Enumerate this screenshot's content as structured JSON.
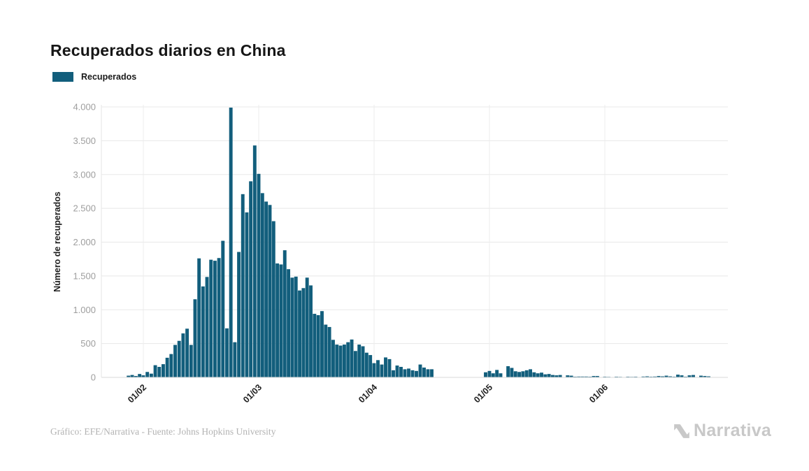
{
  "header": {
    "title": "Recuperados diarios en China"
  },
  "legend": {
    "label": "Recuperados",
    "color": "#125e7c"
  },
  "y_axis": {
    "label": "Número de recuperados",
    "ticks": [
      {
        "label": "4.000",
        "value": 4000
      },
      {
        "label": "3.500",
        "value": 3500
      },
      {
        "label": "3.000",
        "value": 3000
      },
      {
        "label": "2.500",
        "value": 2500
      },
      {
        "label": "2.000",
        "value": 2000
      },
      {
        "label": "1.500",
        "value": 1500
      },
      {
        "label": "1.000",
        "value": 1000
      },
      {
        "label": "500",
        "value": 500
      },
      {
        "label": "0",
        "value": 0
      }
    ]
  },
  "x_axis": {
    "ticks": [
      {
        "label": "01/02",
        "month": 2
      },
      {
        "label": "01/03",
        "month": 3
      },
      {
        "label": "01/04",
        "month": 4
      },
      {
        "label": "01/05",
        "month": 5
      },
      {
        "label": "01/06",
        "month": 6
      }
    ]
  },
  "footer": {
    "credit": "Gráfico: EFE/Narrativa - Fuente: Johns Hopkins University"
  },
  "branding": {
    "logo_text": "Narrativa"
  },
  "chart_data": {
    "type": "bar",
    "title": "Recuperados diarios en China",
    "series_name": "Recuperados",
    "xlabel": "",
    "ylabel": "Número de recuperados",
    "ylim": [
      0,
      4000
    ],
    "grid": true,
    "legend_position": "top-left",
    "bar_color": "#125e7c",
    "x": [
      "28/01",
      "29/01",
      "30/01",
      "31/01",
      "01/02",
      "02/02",
      "03/02",
      "04/02",
      "05/02",
      "06/02",
      "07/02",
      "08/02",
      "09/02",
      "10/02",
      "11/02",
      "12/02",
      "13/02",
      "14/02",
      "15/02",
      "16/02",
      "17/02",
      "18/02",
      "19/02",
      "20/02",
      "21/02",
      "22/02",
      "23/02",
      "24/02",
      "25/02",
      "26/02",
      "27/02",
      "28/02",
      "29/02",
      "01/03",
      "02/03",
      "03/03",
      "04/03",
      "05/03",
      "06/03",
      "07/03",
      "08/03",
      "09/03",
      "10/03",
      "11/03",
      "12/03",
      "13/03",
      "14/03",
      "15/03",
      "16/03",
      "17/03",
      "18/03",
      "19/03",
      "20/03",
      "21/03",
      "22/03",
      "23/03",
      "24/03",
      "25/03",
      "26/03",
      "27/03",
      "28/03",
      "29/03",
      "30/03",
      "31/03",
      "01/04",
      "02/04",
      "03/04",
      "04/04",
      "05/04",
      "06/04",
      "07/04",
      "08/04",
      "09/04",
      "10/04",
      "11/04",
      "12/04",
      "13/04",
      "14/04",
      "15/04",
      "16/04",
      "17/04",
      "18/04",
      "19/04",
      "20/04",
      "21/04",
      "22/04",
      "23/04",
      "24/04",
      "25/04",
      "26/04",
      "27/04",
      "28/04",
      "29/04",
      "30/04",
      "01/05",
      "02/05",
      "03/05",
      "04/05",
      "05/05",
      "06/05",
      "07/05",
      "08/05",
      "09/05",
      "10/05",
      "11/05",
      "12/05",
      "13/05",
      "14/05",
      "15/05",
      "16/05",
      "17/05",
      "18/05",
      "19/05",
      "20/05",
      "21/05",
      "22/05",
      "23/05",
      "24/05",
      "25/05",
      "26/05",
      "27/05",
      "28/05",
      "29/05",
      "30/05",
      "31/05",
      "01/06",
      "02/06",
      "03/06",
      "04/06",
      "05/06",
      "06/06",
      "07/06",
      "08/06",
      "09/06",
      "10/06",
      "11/06",
      "12/06",
      "13/06",
      "14/06",
      "15/06",
      "16/06",
      "17/06",
      "18/06",
      "19/06",
      "20/06",
      "21/06",
      "22/06",
      "23/06",
      "24/06",
      "25/06",
      "26/06",
      "27/06",
      "28/06",
      "29/06",
      "30/06"
    ],
    "values": [
      25,
      35,
      20,
      50,
      30,
      80,
      55,
      180,
      155,
      195,
      290,
      345,
      480,
      540,
      650,
      720,
      480,
      1155,
      1760,
      1345,
      1485,
      1740,
      1725,
      1765,
      2020,
      725,
      3990,
      520,
      1855,
      2710,
      2440,
      2900,
      3430,
      3010,
      2725,
      2600,
      2550,
      2310,
      1685,
      1670,
      1880,
      1600,
      1475,
      1490,
      1285,
      1320,
      1475,
      1360,
      940,
      920,
      980,
      780,
      745,
      555,
      485,
      470,
      485,
      520,
      560,
      390,
      485,
      460,
      365,
      330,
      210,
      255,
      190,
      295,
      270,
      105,
      175,
      155,
      120,
      130,
      105,
      95,
      190,
      145,
      120,
      120,
      0,
      0,
      0,
      0,
      0,
      0,
      0,
      0,
      0,
      0,
      0,
      0,
      0,
      75,
      95,
      60,
      110,
      60,
      0,
      165,
      140,
      90,
      80,
      90,
      105,
      120,
      75,
      60,
      70,
      45,
      50,
      35,
      30,
      35,
      0,
      30,
      25,
      10,
      12,
      12,
      12,
      10,
      20,
      20,
      0,
      10,
      8,
      0,
      10,
      8,
      0,
      10,
      8,
      10,
      0,
      12,
      15,
      10,
      12,
      20,
      15,
      25,
      15,
      10,
      40,
      30,
      10,
      30,
      35,
      0,
      25,
      20,
      15,
      0,
      0
    ]
  }
}
